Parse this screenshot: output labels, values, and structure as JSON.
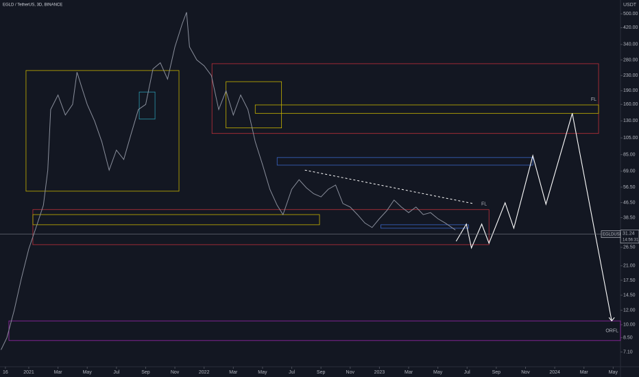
{
  "chart_data": {
    "type": "line",
    "title": "EGLD / TetherUS, 3D, BINANCE",
    "y_unit": "USDT",
    "log_scale": true,
    "grid": false,
    "xlim": [
      -1.97,
      40.5
    ],
    "ylim": [
      5.9,
      595
    ],
    "xticks": [
      {
        "value": -1.6,
        "label": "16"
      },
      {
        "value": 0,
        "label": "2021"
      },
      {
        "value": 2,
        "label": "Mar"
      },
      {
        "value": 4,
        "label": "May"
      },
      {
        "value": 6,
        "label": "Jul"
      },
      {
        "value": 8,
        "label": "Sep"
      },
      {
        "value": 10,
        "label": "Nov"
      },
      {
        "value": 12,
        "label": "2022"
      },
      {
        "value": 14,
        "label": "Mar"
      },
      {
        "value": 16,
        "label": "May"
      },
      {
        "value": 18,
        "label": "Jul"
      },
      {
        "value": 20,
        "label": "Sep"
      },
      {
        "value": 22,
        "label": "Nov"
      },
      {
        "value": 24,
        "label": "2023"
      },
      {
        "value": 26,
        "label": "Mar"
      },
      {
        "value": 28,
        "label": "May"
      },
      {
        "value": 30,
        "label": "Jul"
      },
      {
        "value": 32,
        "label": "Sep"
      },
      {
        "value": 34,
        "label": "Nov"
      },
      {
        "value": 36,
        "label": "2024"
      },
      {
        "value": 38,
        "label": "Mar"
      },
      {
        "value": 40,
        "label": "May"
      }
    ],
    "yticks": [
      {
        "value": 500,
        "label": "500.00"
      },
      {
        "value": 420,
        "label": "420.00"
      },
      {
        "value": 340,
        "label": "340.00"
      },
      {
        "value": 280,
        "label": "280.00"
      },
      {
        "value": 230,
        "label": "230.00"
      },
      {
        "value": 190,
        "label": "190.00"
      },
      {
        "value": 160,
        "label": "160.00"
      },
      {
        "value": 130,
        "label": "130.00"
      },
      {
        "value": 105,
        "label": "105.00"
      },
      {
        "value": 85,
        "label": "85.00"
      },
      {
        "value": 69,
        "label": "69.00"
      },
      {
        "value": 56.5,
        "label": "56.50"
      },
      {
        "value": 46.5,
        "label": "46.50"
      },
      {
        "value": 38.5,
        "label": "38.50"
      },
      {
        "value": 26.5,
        "label": "26.50"
      },
      {
        "value": 21,
        "label": "21.00"
      },
      {
        "value": 17.5,
        "label": "17.50"
      },
      {
        "value": 14.5,
        "label": "14.50"
      },
      {
        "value": 12,
        "label": "12.00"
      },
      {
        "value": 10,
        "label": "10.00"
      },
      {
        "value": 8.5,
        "label": "8.50"
      },
      {
        "value": 7.1,
        "label": "7.10"
      }
    ],
    "series": [
      {
        "color": "#8a8f9c",
        "x": [
          -1.9,
          -1.5,
          -1,
          -0.5,
          0,
          0.5,
          1,
          1.3,
          1.5,
          2,
          2.5,
          3,
          3.3,
          3.7,
          4,
          4.5,
          5,
          5.5,
          6,
          6.5,
          7,
          7.5,
          8,
          8.5,
          9,
          9.5,
          10,
          10.5,
          10.8,
          11,
          11.5,
          12,
          12.5,
          13,
          13.5,
          14,
          14.5,
          15,
          15.5,
          16,
          16.5,
          17,
          17.4,
          18,
          18.5,
          19,
          19.5,
          20,
          20.5,
          21,
          21.5,
          22,
          22.5,
          23,
          23.5,
          24,
          24.5,
          25,
          25.5,
          26,
          26.5,
          27,
          27.5,
          28,
          28.5,
          29.2
        ],
        "values": [
          7.3,
          8.5,
          12,
          18,
          26,
          34,
          45,
          70,
          150,
          180,
          140,
          160,
          240,
          190,
          160,
          130,
          100,
          70,
          90,
          80,
          110,
          150,
          160,
          250,
          270,
          220,
          330,
          440,
          510,
          330,
          280,
          260,
          230,
          150,
          190,
          140,
          180,
          150,
          100,
          75,
          55,
          45,
          40,
          55,
          62,
          56,
          52,
          50,
          55,
          58,
          46,
          44,
          40,
          36,
          34,
          38,
          42,
          48,
          44,
          41,
          44,
          40,
          41,
          38,
          36,
          33
        ]
      },
      {
        "color": "#ffffff",
        "x": [
          29.25,
          29.95,
          30.3,
          31.0,
          31.5,
          32.6,
          33.2,
          34.5,
          35.4,
          37.2,
          39.9
        ],
        "values": [
          28.6,
          35.5,
          26.3,
          35.5,
          27.9,
          46.4,
          33.7,
          84,
          45.6,
          143,
          10.5
        ]
      }
    ],
    "trendline": {
      "color": "#ffffff",
      "x": [
        18.9,
        30.4
      ],
      "values": [
        70,
        46
      ]
    },
    "zones": [
      {
        "color": "#c8b400",
        "x": [
          -0.19,
          10.28
        ],
        "y": [
          53.7,
          245
        ]
      },
      {
        "color": "#c0303a",
        "x": [
          12.54,
          39.0
        ],
        "y": [
          111,
          267
        ]
      },
      {
        "color": "#c8b400",
        "x": [
          13.5,
          17.3
        ],
        "y": [
          119,
          213
        ]
      },
      {
        "color": "#c8b400",
        "x": [
          15.5,
          39.0
        ],
        "y": [
          143,
          159
        ],
        "label": "FL"
      },
      {
        "color": "#3a66c8",
        "x": [
          17.0,
          34.5
        ],
        "y": [
          74.5,
          82
        ]
      },
      {
        "color": "#c0303a",
        "x": [
          0.28,
          31.5
        ],
        "y": [
          27.4,
          42.6
        ],
        "label": "FL"
      },
      {
        "color": "#c8b400",
        "x": [
          0.28,
          19.9
        ],
        "y": [
          35.2,
          40
        ]
      },
      {
        "color": "#3a66c8",
        "x": [
          24.1,
          30.1
        ],
        "y": [
          33.7,
          35.2
        ]
      },
      {
        "color": "#9c27b0",
        "x": [
          -1.36,
          40.5
        ],
        "y": [
          8.2,
          10.5
        ],
        "label": "ORFL"
      },
      {
        "color": "#2a9ab0",
        "x": [
          7.56,
          8.64
        ],
        "y": [
          133,
          187
        ]
      }
    ],
    "last_price": {
      "symbol": "EGLDUSDT",
      "value": 31.24,
      "countdown": "14:56:31"
    }
  }
}
